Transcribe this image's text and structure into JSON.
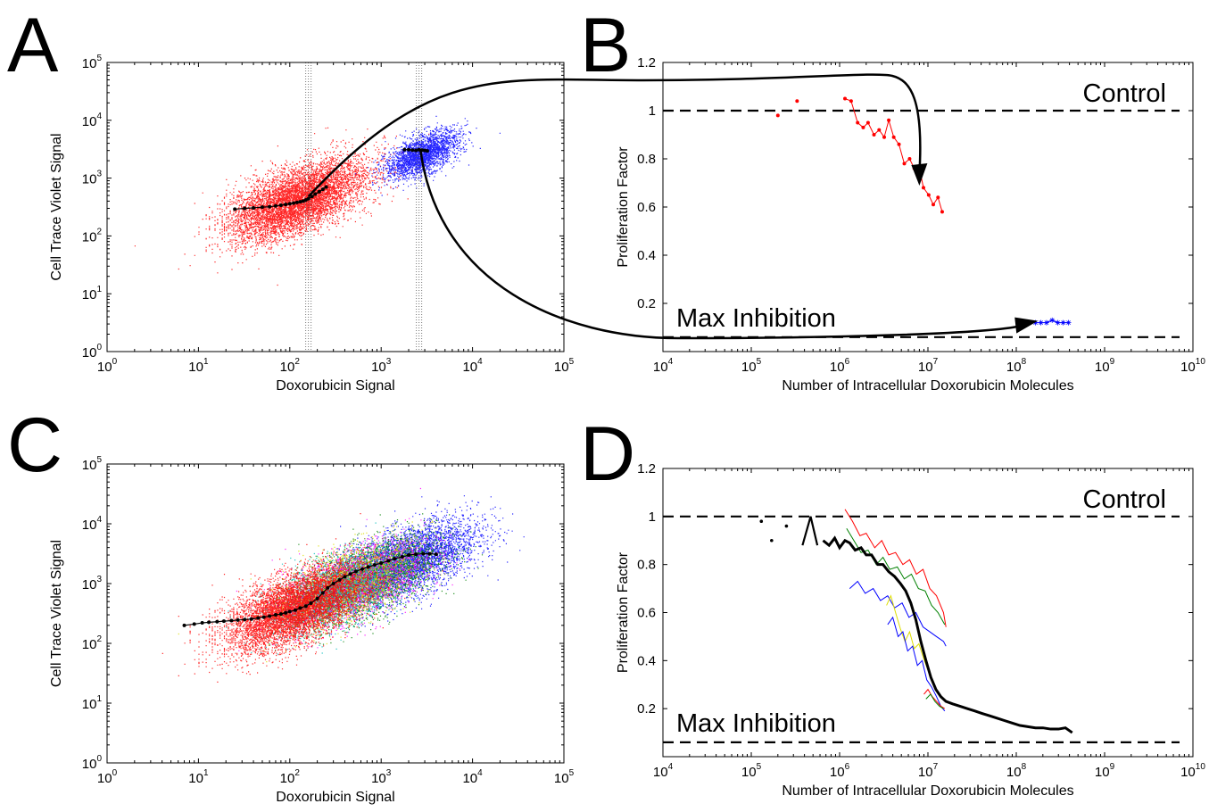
{
  "chart_data": [
    {
      "panel": "A",
      "type": "scatter",
      "xlabel": "Doxorubicin Signal",
      "ylabel": "Cell Trace Violet Signal",
      "xscale": "log",
      "yscale": "log",
      "xlim": [
        1,
        100000
      ],
      "ylim": [
        1,
        100000
      ],
      "x_ticks": [
        "10^0",
        "10^1",
        "10^2",
        "10^3",
        "10^4",
        "10^5"
      ],
      "y_ticks": [
        "10^0",
        "10^1",
        "10^2",
        "10^3",
        "10^4",
        "10^5"
      ],
      "gates": [
        160,
        2600
      ],
      "clouds": [
        {
          "color": "#ff0000",
          "center": [
            120,
            420
          ],
          "spread": "wide",
          "n_approx": 9000
        },
        {
          "color": "#0000ff",
          "center": [
            2800,
            2600
          ],
          "spread": "medium",
          "n_approx": 2500
        }
      ],
      "median_red": {
        "x": [
          25,
          32,
          40,
          50,
          60,
          70,
          80,
          90,
          100,
          110,
          120,
          130,
          140,
          150,
          160,
          175,
          190,
          210,
          230,
          250
        ],
        "y": [
          290,
          300,
          305,
          315,
          320,
          330,
          340,
          350,
          360,
          370,
          380,
          390,
          400,
          420,
          440,
          480,
          530,
          580,
          640,
          700
        ]
      },
      "median_blue": {
        "x": [
          1800,
          2000,
          2200,
          2400,
          2600,
          2800,
          3000,
          3200
        ],
        "y": [
          3100,
          3100,
          3050,
          3000,
          3100,
          3050,
          3000,
          2950
        ]
      }
    },
    {
      "panel": "B",
      "type": "line",
      "xlabel": "Number of Intracellular Doxorubicin Molecules",
      "ylabel": "Proliferation Factor",
      "xscale": "log",
      "xlim": [
        10000,
        10000000000
      ],
      "ylim": [
        0,
        1.2
      ],
      "x_ticks": [
        "10^4",
        "10^5",
        "10^6",
        "10^7",
        "10^8",
        "10^9",
        "10^10"
      ],
      "y_ticks": [
        "0.2",
        "0.4",
        "0.6",
        "0.8",
        "1",
        "1.2"
      ],
      "control_level": 1.0,
      "max_inhibition_level": 0.06,
      "annotations": [
        "Control",
        "Max Inhibition"
      ],
      "series": [
        {
          "color": "#ff0000",
          "marker": "dot",
          "line": "segments",
          "points": [
            [
              200000,
              0.98
            ],
            [
              330000,
              1.04
            ],
            [
              1150000,
              1.05
            ],
            [
              1350000,
              1.04
            ],
            [
              1600000,
              0.95
            ],
            [
              1850000,
              0.93
            ],
            [
              2100000,
              0.95
            ],
            [
              2450000,
              0.9
            ],
            [
              2800000,
              0.92
            ],
            [
              3200000,
              0.89
            ],
            [
              3600000,
              0.96
            ],
            [
              4100000,
              0.89
            ],
            [
              4700000,
              0.86
            ],
            [
              5400000,
              0.78
            ],
            [
              6200000,
              0.8
            ],
            [
              7000000,
              0.76
            ],
            [
              7900000,
              0.77
            ],
            [
              8900000,
              0.68
            ],
            [
              10200000,
              0.65
            ],
            [
              11500000,
              0.61
            ],
            [
              13000000,
              0.64
            ],
            [
              14500000,
              0.58
            ]
          ],
          "connected_from_index": 2
        },
        {
          "color": "#0000ff",
          "marker": "star",
          "points": [
            [
              140000000,
              0.12
            ],
            [
              165000000,
              0.12
            ],
            [
              190000000,
              0.12
            ],
            [
              220000000,
              0.12
            ],
            [
              255000000,
              0.13
            ],
            [
              295000000,
              0.12
            ],
            [
              340000000,
              0.12
            ],
            [
              390000000,
              0.12
            ]
          ]
        }
      ]
    },
    {
      "panel": "C",
      "type": "scatter",
      "xlabel": "Doxorubicin Signal",
      "ylabel": "Cell Trace Violet Signal",
      "xscale": "log",
      "yscale": "log",
      "xlim": [
        1,
        100000
      ],
      "ylim": [
        1,
        100000
      ],
      "x_ticks": [
        "10^0",
        "10^1",
        "10^2",
        "10^3",
        "10^4",
        "10^5"
      ],
      "y_ticks": [
        "10^0",
        "10^1",
        "10^2",
        "10^3",
        "10^4",
        "10^5"
      ],
      "clouds": [
        {
          "color": "#0000ff",
          "center": [
            2000,
            2400
          ],
          "spread": "wide",
          "n_approx": 4000
        },
        {
          "color": "#008000",
          "center": [
            700,
            1200
          ],
          "spread": "wide",
          "n_approx": 3500
        },
        {
          "color": "#ff00ff",
          "center": [
            500,
            1000
          ],
          "spread": "wide",
          "n_approx": 2500
        },
        {
          "color": "#dddd00",
          "center": [
            400,
            900
          ],
          "spread": "wide",
          "n_approx": 2000
        },
        {
          "color": "#00bbbb",
          "center": [
            300,
            700
          ],
          "spread": "wide",
          "n_approx": 2000
        },
        {
          "color": "#ff0000",
          "center": [
            110,
            380
          ],
          "spread": "wide",
          "n_approx": 7000
        }
      ],
      "median": {
        "x": [
          7,
          9,
          11,
          13,
          16,
          19,
          23,
          27,
          32,
          38,
          45,
          52,
          60,
          70,
          80,
          90,
          100,
          115,
          130,
          150,
          170,
          200,
          230,
          260,
          300,
          350,
          400,
          460,
          530,
          620,
          720,
          850,
          1000,
          1200,
          1400,
          1700,
          2000,
          2400,
          2900,
          3400,
          4000
        ],
        "y": [
          200,
          210,
          220,
          225,
          230,
          235,
          240,
          245,
          250,
          255,
          265,
          275,
          285,
          300,
          310,
          325,
          340,
          360,
          390,
          420,
          470,
          560,
          700,
          850,
          1000,
          1150,
          1300,
          1450,
          1600,
          1750,
          1900,
          2050,
          2200,
          2400,
          2600,
          2800,
          3000,
          3100,
          3150,
          3150,
          3100
        ]
      }
    },
    {
      "panel": "D",
      "type": "line",
      "xlabel": "Number of Intracellular Doxorubicin Molecules",
      "ylabel": "Proliferation Factor",
      "xscale": "log",
      "xlim": [
        10000,
        10000000000
      ],
      "ylim": [
        0,
        1.2
      ],
      "x_ticks": [
        "10^4",
        "10^5",
        "10^6",
        "10^7",
        "10^8",
        "10^9",
        "10^10"
      ],
      "y_ticks": [
        "0.2",
        "0.4",
        "0.6",
        "0.8",
        "1",
        "1.2"
      ],
      "control_level": 1.0,
      "max_inhibition_level": 0.06,
      "annotations": [
        "Control",
        "Max Inhibition"
      ],
      "series": [
        {
          "color": "#ff0000",
          "points": [
            [
              1150000,
              1.03
            ],
            [
              1400000,
              0.98
            ],
            [
              1700000,
              0.92
            ],
            [
              2000000,
              0.93
            ],
            [
              2500000,
              0.87
            ],
            [
              3000000,
              0.9
            ],
            [
              3600000,
              0.84
            ],
            [
              4300000,
              0.85
            ],
            [
              5200000,
              0.8
            ],
            [
              6200000,
              0.82
            ],
            [
              7400000,
              0.76
            ],
            [
              8800000,
              0.78
            ],
            [
              10500000,
              0.7
            ],
            [
              12500000,
              0.67
            ],
            [
              15000000,
              0.6
            ],
            [
              16000000,
              0.54
            ]
          ]
        },
        {
          "color": "#008000",
          "points": [
            [
              1200000,
              0.95
            ],
            [
              1450000,
              0.9
            ],
            [
              1750000,
              0.85
            ],
            [
              2100000,
              0.86
            ],
            [
              2600000,
              0.8
            ],
            [
              3100000,
              0.83
            ],
            [
              3700000,
              0.78
            ],
            [
              4500000,
              0.79
            ],
            [
              5400000,
              0.74
            ],
            [
              6500000,
              0.76
            ],
            [
              7800000,
              0.7
            ],
            [
              9300000,
              0.69
            ],
            [
              11000000,
              0.63
            ],
            [
              13000000,
              0.6
            ],
            [
              15500000,
              0.55
            ]
          ]
        },
        {
          "color": "#0000ff",
          "points": [
            [
              1300000,
              0.7
            ],
            [
              1600000,
              0.73
            ],
            [
              1950000,
              0.68
            ],
            [
              2400000,
              0.7
            ],
            [
              2900000,
              0.65
            ],
            [
              3500000,
              0.67
            ],
            [
              4200000,
              0.62
            ],
            [
              5100000,
              0.64
            ],
            [
              6100000,
              0.58
            ],
            [
              7300000,
              0.6
            ],
            [
              8800000,
              0.54
            ],
            [
              10500000,
              0.52
            ],
            [
              12500000,
              0.5
            ],
            [
              15000000,
              0.48
            ],
            [
              16000000,
              0.46
            ]
          ]
        },
        {
          "color": "#dddd00",
          "points": [
            [
              3400000,
              0.63
            ],
            [
              3800000,
              0.67
            ],
            [
              4300000,
              0.6
            ],
            [
              4900000,
              0.53
            ],
            [
              5500000,
              0.48
            ],
            [
              6200000,
              0.52
            ],
            [
              7000000,
              0.45
            ],
            [
              7900000,
              0.47
            ],
            [
              8900000,
              0.41
            ],
            [
              10000000,
              0.36
            ],
            [
              11300000,
              0.32
            ]
          ]
        },
        {
          "color": "#0000ff",
          "points": [
            [
              3500000,
              0.55
            ],
            [
              4000000,
              0.58
            ],
            [
              4600000,
              0.5
            ],
            [
              5200000,
              0.52
            ],
            [
              5900000,
              0.44
            ],
            [
              6700000,
              0.46
            ],
            [
              7600000,
              0.38
            ],
            [
              8600000,
              0.4
            ],
            [
              9700000,
              0.32
            ],
            [
              11000000,
              0.29
            ],
            [
              12500000,
              0.25
            ],
            [
              14000000,
              0.21
            ],
            [
              15500000,
              0.19
            ]
          ]
        },
        {
          "color": "#ff0000",
          "points": [
            [
              9000000,
              0.26
            ],
            [
              10000000,
              0.28
            ],
            [
              11200000,
              0.25
            ],
            [
              12500000,
              0.23
            ],
            [
              14000000,
              0.21
            ],
            [
              15500000,
              0.2
            ]
          ]
        },
        {
          "color": "#008000",
          "points": [
            [
              9500000,
              0.24
            ],
            [
              10700000,
              0.26
            ],
            [
              12000000,
              0.23
            ],
            [
              13500000,
              0.21
            ],
            [
              15000000,
              0.2
            ]
          ]
        },
        {
          "color": "#000000",
          "width": "thick",
          "dots": [
            [
              130000,
              0.98
            ],
            [
              170000,
              0.9
            ],
            [
              250000,
              0.96
            ]
          ],
          "points": [
            [
              380000,
              0.88
            ],
            [
              470000,
              1.0
            ],
            [
              560000,
              0.88
            ]
          ],
          "main_points": [
            [
              650000,
              0.9
            ],
            [
              760000,
              0.88
            ],
            [
              880000,
              0.91
            ],
            [
              1000000,
              0.87
            ],
            [
              1150000,
              0.9
            ],
            [
              1300000,
              0.89
            ],
            [
              1500000,
              0.86
            ],
            [
              1750000,
              0.87
            ],
            [
              2000000,
              0.84
            ],
            [
              2300000,
              0.84
            ],
            [
              2700000,
              0.8
            ],
            [
              3100000,
              0.8
            ],
            [
              3600000,
              0.77
            ],
            [
              4200000,
              0.75
            ],
            [
              4900000,
              0.72
            ],
            [
              5600000,
              0.69
            ],
            [
              6400000,
              0.64
            ],
            [
              7300000,
              0.57
            ],
            [
              8300000,
              0.48
            ],
            [
              9500000,
              0.4
            ],
            [
              10800000,
              0.33
            ],
            [
              12300000,
              0.28
            ],
            [
              14000000,
              0.25
            ],
            [
              16000000,
              0.23
            ],
            [
              19000000,
              0.22
            ],
            [
              23000000,
              0.21
            ],
            [
              28000000,
              0.2
            ],
            [
              34000000,
              0.19
            ],
            [
              41000000,
              0.18
            ],
            [
              50000000,
              0.17
            ],
            [
              61000000,
              0.16
            ],
            [
              74000000,
              0.15
            ],
            [
              90000000,
              0.14
            ],
            [
              110000000,
              0.13
            ],
            [
              135000000,
              0.125
            ],
            [
              165000000,
              0.12
            ],
            [
              200000000,
              0.12
            ],
            [
              245000000,
              0.115
            ],
            [
              300000000,
              0.115
            ],
            [
              360000000,
              0.12
            ],
            [
              430000000,
              0.1
            ]
          ]
        }
      ]
    }
  ]
}
